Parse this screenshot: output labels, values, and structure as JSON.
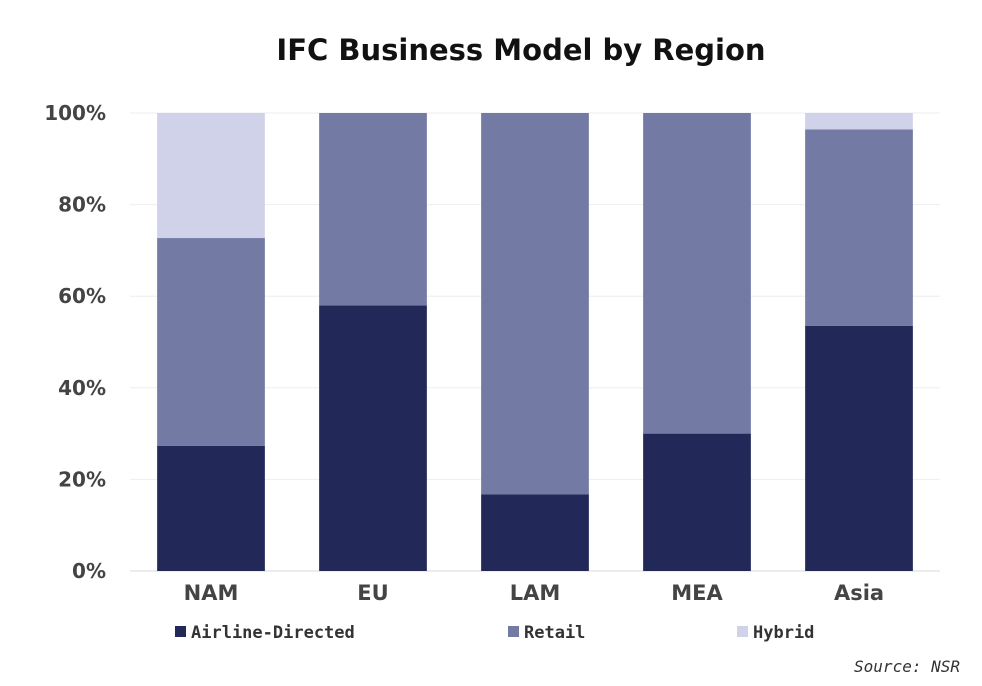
{
  "chart_data": {
    "type": "bar",
    "stacked": true,
    "title": "IFC Business Model by Region",
    "xlabel": "",
    "ylabel": "",
    "categories": [
      "NAM",
      "EU",
      "LAM",
      "MEA",
      "Asia"
    ],
    "series": [
      {
        "name": "Airline-Directed",
        "color": "#222858",
        "values": [
          27.3,
          58.0,
          16.7,
          30.0,
          53.5
        ]
      },
      {
        "name": "Retail",
        "color": "#737ba5",
        "values": [
          45.4,
          42.0,
          83.3,
          70.0,
          42.9
        ]
      },
      {
        "name": "Hybrid",
        "color": "#d0d2ea",
        "values": [
          27.3,
          0.0,
          0.0,
          0.0,
          3.6
        ]
      }
    ],
    "ylim": [
      0,
      100
    ],
    "yticks": [
      "0%",
      "20%",
      "40%",
      "60%",
      "80%",
      "100%"
    ],
    "grid": true,
    "legend_position": "bottom",
    "source": "Source: NSR"
  }
}
